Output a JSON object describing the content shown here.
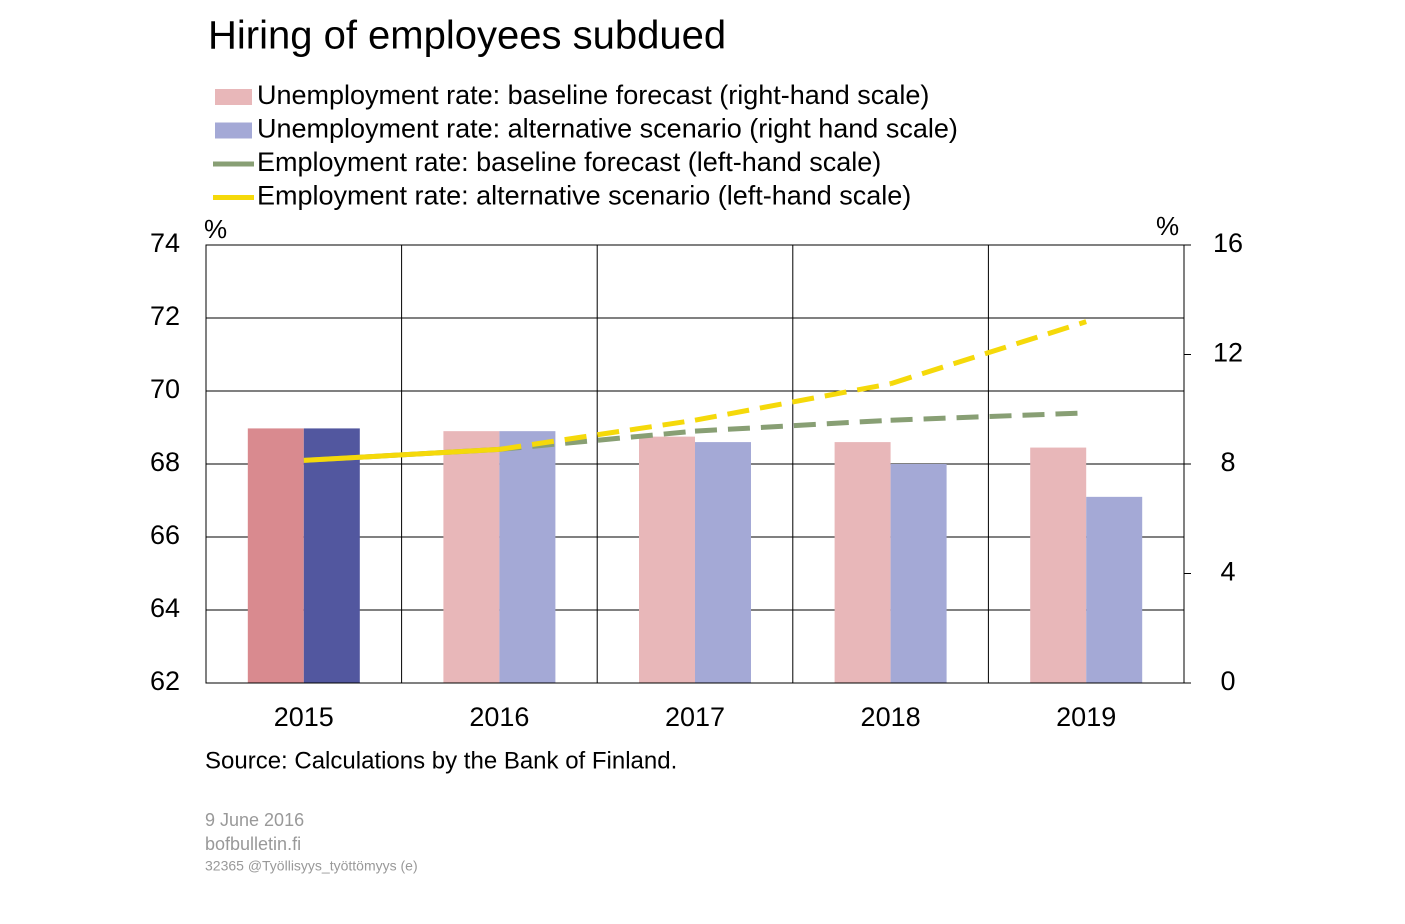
{
  "chart_data": {
    "type": "bar",
    "title": "Hiring of employees subdued",
    "y_unit": "%",
    "y2_unit": "%",
    "source": "Source: Calculations by the Bank of Finland.",
    "footer": [
      "9 June 2016",
      "bofbulletin.fi",
      "32365 @Työllisyys_työttömyys (e)"
    ],
    "categories": [
      "2015",
      "2016",
      "2017",
      "2018",
      "2019"
    ],
    "ylim": [
      62,
      74
    ],
    "yticks": [
      62,
      64,
      66,
      68,
      70,
      72,
      74
    ],
    "y2lim": [
      0,
      16
    ],
    "y2ticks": [
      0,
      4,
      8,
      12,
      16
    ],
    "grid": true,
    "series": [
      {
        "name": "Unemployment rate: baseline forecast (right-hand scale)",
        "type": "bar",
        "axis": "y2",
        "color": "#e8b7b9",
        "colors": [
          "#d98a8f",
          "#e8b7b9",
          "#e8b7b9",
          "#e8b7b9",
          "#e8b7b9"
        ],
        "values": [
          9.3,
          9.2,
          9.0,
          8.8,
          8.6
        ]
      },
      {
        "name": "Unemployment rate: alternative scenario (right hand scale)",
        "type": "bar",
        "axis": "y2",
        "color": "#a4a9d6",
        "colors": [
          "#52579f",
          "#a4a9d6",
          "#a4a9d6",
          "#a4a9d6",
          "#a4a9d6"
        ],
        "values": [
          9.3,
          9.2,
          8.8,
          8.0,
          6.8
        ]
      },
      {
        "name": "Employment rate: baseline forecast (left-hand scale)",
        "type": "line",
        "color": "#889f74",
        "styles": [
          "solid",
          "solid",
          "dashed",
          "dashed",
          "dashed"
        ],
        "values": [
          68.1,
          68.4,
          68.9,
          69.2,
          69.4
        ]
      },
      {
        "name": "Employment rate: alternative scenario (left-hand scale)",
        "type": "line",
        "color": "#f5d90a",
        "styles": [
          "solid",
          "solid",
          "dashed",
          "dashed",
          "dashed"
        ],
        "values": [
          68.1,
          68.4,
          69.2,
          70.2,
          71.9
        ]
      }
    ]
  }
}
